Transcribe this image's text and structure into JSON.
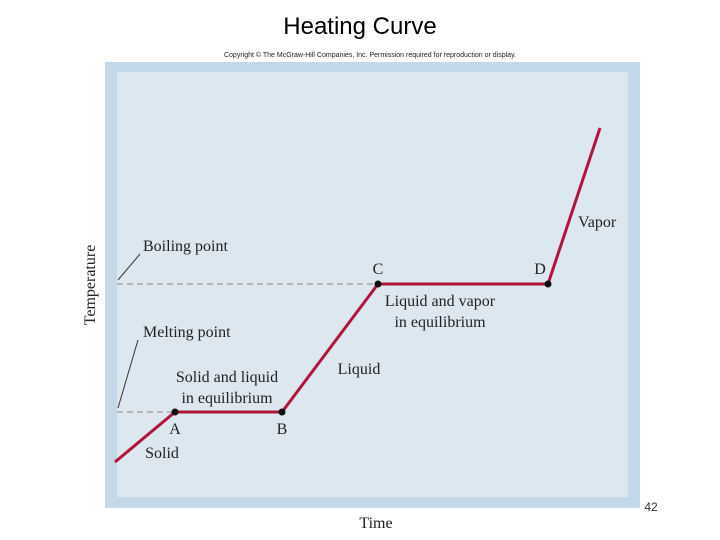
{
  "header": {
    "title": "Heating Curve",
    "copyright": "Copyright © The McGraw-Hill Companies, Inc. Permission required for reproduction or display."
  },
  "diagram": {
    "y_axis_label": "Temperature",
    "x_axis_label": "Time",
    "points": {
      "a": "A",
      "b": "B",
      "c": "C",
      "d": "D"
    },
    "annotations": {
      "boiling_point": "Boiling point",
      "melting_point": "Melting point",
      "vapor": "Vapor",
      "liquid_vapor": [
        "Liquid and vapor",
        "in equilibrium"
      ],
      "liquid": "Liquid",
      "solid_liquid": [
        "Solid and liquid",
        "in equilibrium"
      ],
      "solid": "Solid"
    }
  },
  "footer": {
    "page_number": "42"
  }
}
